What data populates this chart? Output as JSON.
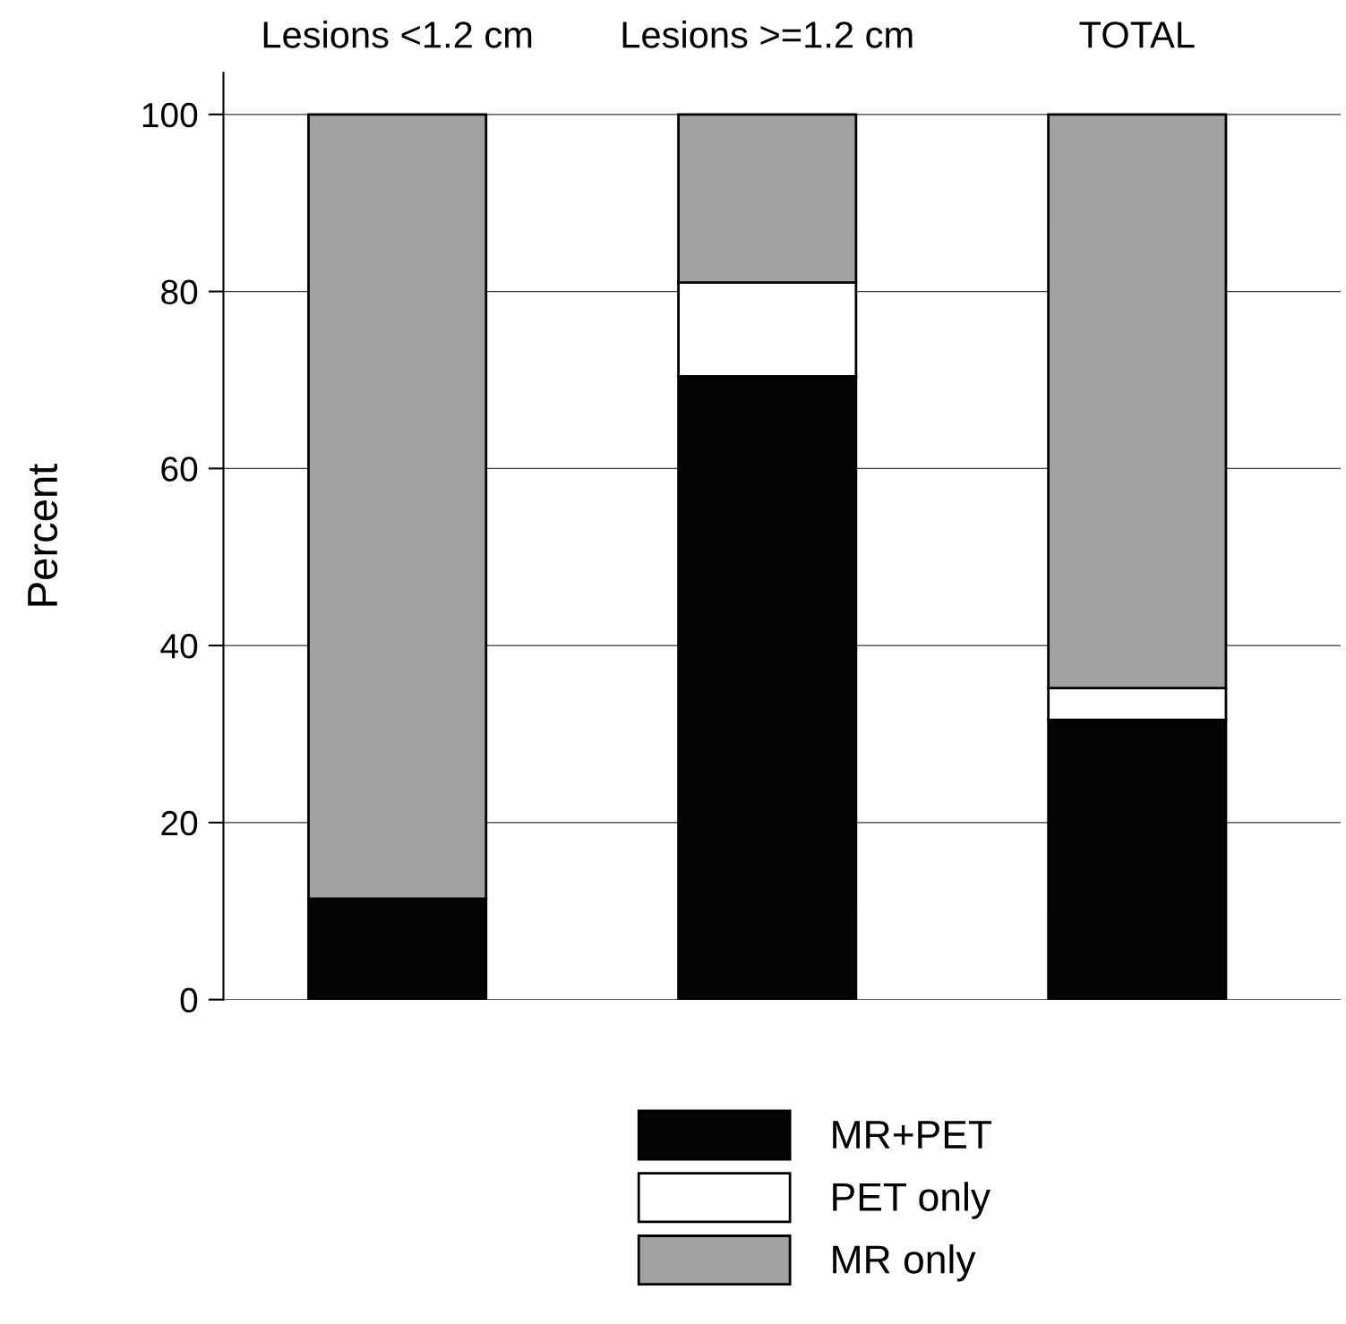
{
  "chart_data": {
    "type": "bar",
    "stacked": true,
    "ylabel": "Percent",
    "categories": [
      "Lesions <1.2 cm",
      "Lesions >=1.2 cm",
      "TOTAL"
    ],
    "series": [
      {
        "name": "MR+PET",
        "color": "#050503",
        "values": [
          11.4,
          70.4,
          31.6
        ]
      },
      {
        "name": "PET only",
        "color": "#ffffff",
        "values": [
          0,
          10.6,
          3.6
        ]
      },
      {
        "name": "MR only",
        "color": "#a2a2a0",
        "values": [
          88.6,
          19,
          64.8
        ]
      }
    ],
    "ylim": [
      0,
      104.7
    ],
    "yticks": [
      0,
      20,
      40,
      60,
      80,
      100
    ],
    "grid": "y",
    "legend": "bottom"
  }
}
